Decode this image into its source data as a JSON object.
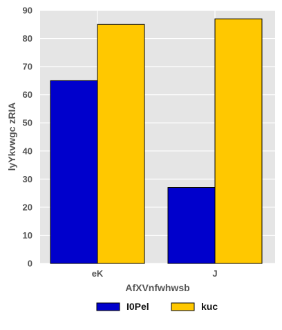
{
  "chart_data": {
    "type": "bar",
    "categories": [
      "eK",
      "J"
    ],
    "series": [
      {
        "name": "I0Pel",
        "values": [
          65,
          27
        ],
        "color": "#0000cc"
      },
      {
        "name": "kuc",
        "values": [
          85,
          87
        ],
        "color": "#ffc800"
      }
    ],
    "xlabel": "AfXVnfwhwsb",
    "ylabel": "lyYkvwgc zRIA",
    "ylim": [
      0,
      90
    ],
    "yticks": [
      0,
      10,
      20,
      30,
      40,
      50,
      60,
      70,
      80,
      90
    ],
    "grid": true,
    "plot_background": "#e5e5e5",
    "legend_position": "bottom-center"
  }
}
